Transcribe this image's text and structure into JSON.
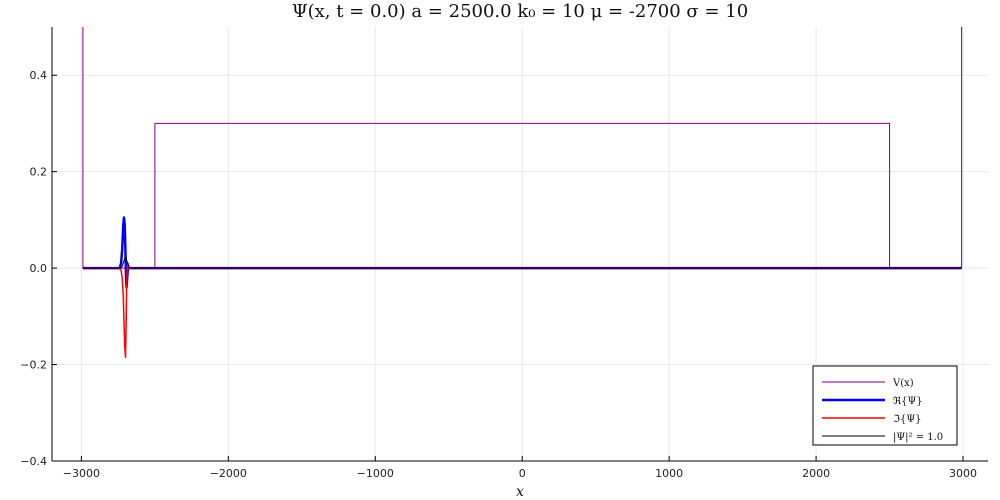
{
  "chart_data": {
    "type": "line",
    "title": "Ψ(x, t = 0.0)   a = 2500.0   k₀ = 10   μ = -2700   σ = 10",
    "xlabel": "x",
    "ylabel": "",
    "xlim": [
      -3200,
      3170
    ],
    "ylim": [
      -0.4,
      0.5
    ],
    "xticks": [
      -3000,
      -2000,
      -1000,
      0,
      1000,
      2000,
      3000
    ],
    "xtick_labels": [
      "−3000",
      "−2000",
      "−1000",
      "0",
      "1000",
      "2000",
      "3000"
    ],
    "yticks": [
      -0.4,
      -0.2,
      0.0,
      0.2,
      0.4
    ],
    "ytick_labels": [
      "−0.4",
      "−0.2",
      "0.0",
      "0.2",
      "0.4"
    ],
    "grid": true,
    "legend_position": "bottom-right",
    "series": [
      {
        "name": "V(x)",
        "color": "#800080",
        "width": 1,
        "x": [
          -2990,
          -2990,
          -2980,
          -2500,
          -2500,
          2500,
          2500,
          2980,
          2990,
          2990
        ],
        "y": [
          0.5,
          0.0,
          0.0,
          0.0,
          0.3,
          0.3,
          0.0,
          0.0,
          0.0,
          0.5
        ]
      },
      {
        "name": "ℜ{Ψ}",
        "color": "#0000ff",
        "width": 2.5,
        "x": [
          -2990,
          -2740,
          -2730,
          -2722,
          -2715,
          -2710,
          -2705,
          -2700,
          -2696,
          -2692,
          -2688,
          -2682,
          -2676,
          -2668,
          -2660,
          2990
        ],
        "y": [
          0.0,
          0.0,
          0.01,
          0.04,
          0.09,
          0.105,
          0.09,
          0.03,
          -0.02,
          -0.04,
          -0.02,
          0.005,
          0.0,
          0.0,
          0.0,
          0.0
        ]
      },
      {
        "name": "ℑ{Ψ}",
        "color": "#ff0000",
        "width": 1.5,
        "x": [
          -2990,
          -2740,
          -2730,
          -2722,
          -2715,
          -2710,
          -2705,
          -2700,
          -2696,
          -2692,
          -2688,
          -2682,
          -2676,
          -2670,
          2990
        ],
        "y": [
          0.0,
          0.0,
          -0.005,
          -0.02,
          -0.06,
          -0.11,
          -0.16,
          -0.185,
          -0.12,
          -0.04,
          0.0,
          0.01,
          0.0,
          0.0,
          0.0
        ]
      },
      {
        "name": "|Ψ|² = 1.0",
        "color": "#000000",
        "width": 1,
        "x": [
          -2990,
          -2730,
          -2720,
          -2710,
          -2700,
          -2690,
          -2680,
          -2670,
          2990
        ],
        "y": [
          0.0,
          0.0,
          0.005,
          0.015,
          0.025,
          0.015,
          0.005,
          0.0,
          0.0
        ]
      }
    ]
  }
}
